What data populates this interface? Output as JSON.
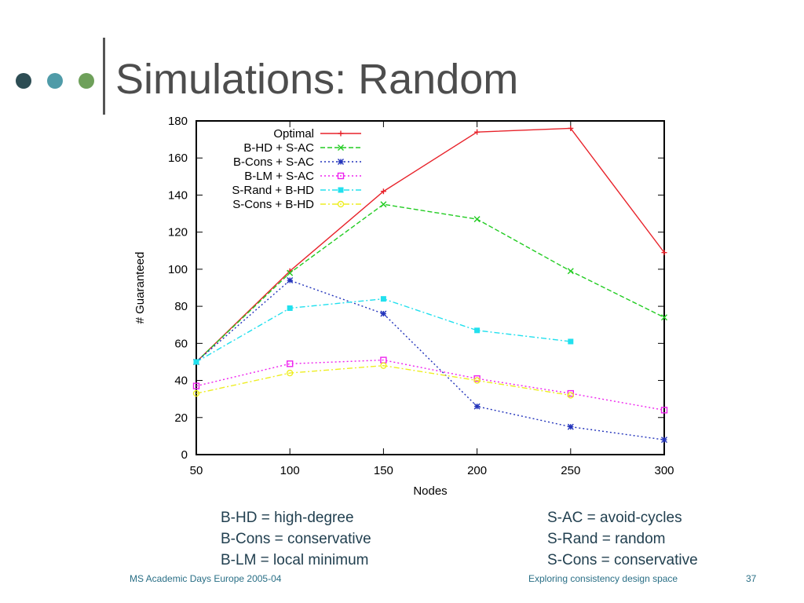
{
  "slide": {
    "title": "Simulations: Random",
    "dot_colors": [
      "#2d4d54",
      "#4f9ba8",
      "#6ea05a"
    ],
    "notes_left": [
      "B-HD = high-degree",
      "B-Cons = conservative",
      "B-LM = local minimum"
    ],
    "notes_right": [
      "S-AC = avoid-cycles",
      "S-Rand = random",
      "S-Cons = conservative"
    ],
    "footer_left": "MS Academic Days Europe  2005-04",
    "footer_center": "Exploring consistency design space",
    "page_number": "37"
  },
  "chart_data": {
    "type": "line",
    "xlabel": "Nodes",
    "ylabel": "# Guaranteed",
    "xlim": [
      50,
      300
    ],
    "ylim": [
      0,
      180
    ],
    "xticks": [
      50,
      100,
      150,
      200,
      250,
      300
    ],
    "yticks": [
      0,
      20,
      40,
      60,
      80,
      100,
      120,
      140,
      160,
      180
    ],
    "legend_position": "top-left",
    "grid": false,
    "series": [
      {
        "name": "Optimal",
        "color": "#e8222a",
        "dash": "solid",
        "marker": "plus",
        "x": [
          50,
          100,
          150,
          200,
          250,
          300
        ],
        "y": [
          50,
          99,
          142,
          174,
          176,
          109
        ]
      },
      {
        "name": "B-HD + S-AC",
        "color": "#22cc22",
        "dash": "dashed",
        "marker": "cross",
        "x": [
          50,
          100,
          150,
          200,
          250,
          300
        ],
        "y": [
          50,
          98,
          135,
          127,
          99,
          74
        ]
      },
      {
        "name": "B-Cons + S-AC",
        "color": "#2233bb",
        "dash": "dotted",
        "marker": "star",
        "x": [
          50,
          100,
          150,
          200,
          250,
          300
        ],
        "y": [
          50,
          94,
          76,
          26,
          15,
          8
        ]
      },
      {
        "name": "B-LM + S-AC",
        "color": "#ee22ee",
        "dash": "dotted",
        "marker": "square",
        "x": [
          50,
          100,
          150,
          200,
          250,
          300
        ],
        "y": [
          37,
          49,
          51,
          41,
          33,
          24
        ]
      },
      {
        "name": "S-Rand + B-HD",
        "color": "#22e0ee",
        "dash": "dashdot",
        "marker": "filled-square",
        "x": [
          50,
          100,
          150,
          200,
          250
        ],
        "y": [
          50,
          79,
          84,
          67,
          61
        ]
      },
      {
        "name": "S-Cons + B-HD",
        "color": "#eeee22",
        "dash": "dashdot",
        "marker": "circle",
        "x": [
          50,
          100,
          150,
          200,
          250
        ],
        "y": [
          33,
          44,
          48,
          40,
          32
        ]
      }
    ]
  }
}
